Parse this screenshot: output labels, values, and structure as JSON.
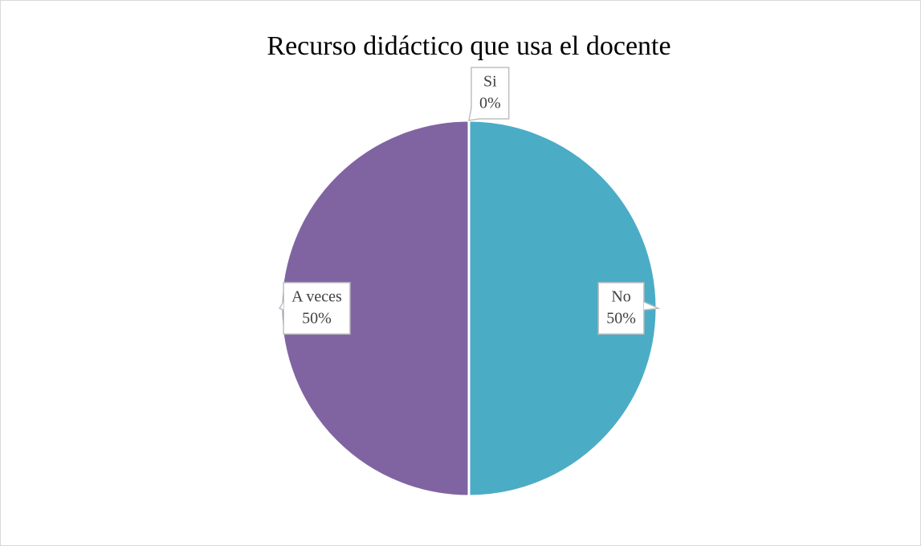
{
  "chart_data": {
    "type": "pie",
    "title": "Recurso didáctico que usa el docente",
    "categories": [
      "Si",
      "No",
      "A veces"
    ],
    "values": [
      0,
      50,
      50
    ],
    "value_labels": [
      "0%",
      "50%",
      "50%"
    ],
    "colors": [
      "#4f81bd",
      "#4bacc6",
      "#8064a2"
    ]
  }
}
